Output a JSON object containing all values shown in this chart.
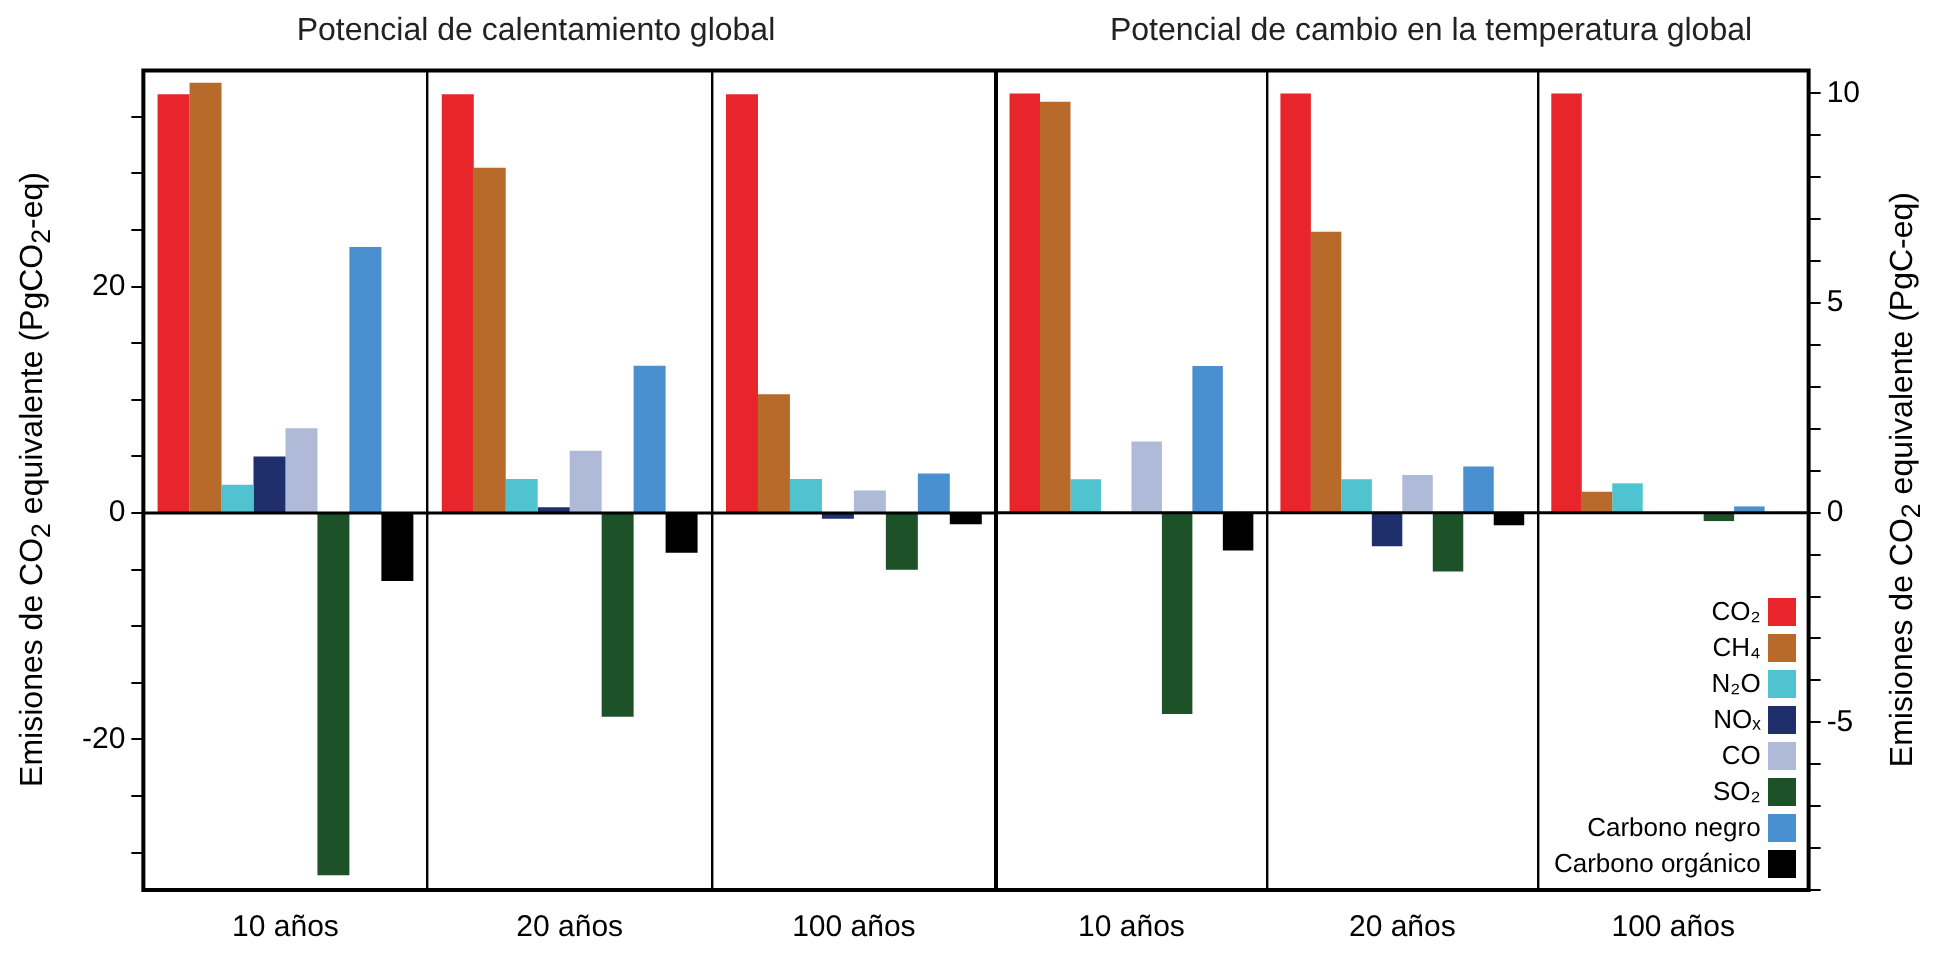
{
  "chart_data": [
    {
      "type": "bar",
      "title": "Potencial de calentamiento global",
      "ylabel": "Emisiones de CO$_{2}$ equivalente (PgCO$_{2}$-eq)",
      "categories": [
        "10 años",
        "20 años",
        "100 años"
      ],
      "ylim": [
        -33.3,
        39.1
      ],
      "yticks": [
        {
          "value": -30,
          "label": null
        },
        {
          "value": -25,
          "label": null
        },
        -20,
        {
          "value": -15,
          "label": null
        },
        {
          "value": -10,
          "label": null
        },
        {
          "value": -5,
          "label": null
        },
        0,
        {
          "value": 5,
          "label": null
        },
        {
          "value": 10,
          "label": null
        },
        {
          "value": 15,
          "label": null
        },
        20,
        {
          "value": 25,
          "label": null
        },
        {
          "value": 30,
          "label": null
        },
        {
          "value": 35,
          "label": null
        }
      ],
      "grid": "x",
      "ref_lines": [
        {
          "axis": "y",
          "value": 0
        }
      ],
      "series": [
        {
          "color": "#e8252a",
          "values": [
            37,
            37,
            37
          ]
        },
        {
          "color": "#b86a2a",
          "values": [
            38,
            30.5,
            10.5
          ]
        },
        {
          "color": "#4fc3d0",
          "values": [
            2.5,
            3,
            3
          ]
        },
        {
          "color": "#1f2f6b",
          "values": [
            5,
            0.5,
            -0.5
          ]
        },
        {
          "color": "#aebad8",
          "values": [
            7.5,
            5.5,
            2
          ]
        },
        {
          "color": "#1d5128",
          "values": [
            -32,
            -18,
            -5
          ]
        },
        {
          "color": "#4a90d0",
          "values": [
            23.5,
            13,
            3.5
          ]
        },
        {
          "color": "#000000",
          "values": [
            -6,
            -3.5,
            -1
          ]
        }
      ]
    },
    {
      "type": "bar",
      "title": "Potencial de cambio en la temperatura global",
      "y2label": "Emisiones de CO$_{2}$ equivalente (PgC-eq)",
      "categories": [
        "10 años",
        "20 años",
        "100 años"
      ],
      "y2lim": [
        -9,
        10.55
      ],
      "y2ticks": [
        {
          "value": -9,
          "label": null
        },
        {
          "value": -8,
          "label": null
        },
        {
          "value": -7,
          "label": null
        },
        {
          "value": -6,
          "label": null
        },
        -5,
        {
          "value": -4,
          "label": null
        },
        {
          "value": -3,
          "label": null
        },
        {
          "value": -2,
          "label": null
        },
        {
          "value": -1,
          "label": null
        },
        0,
        {
          "value": 1,
          "label": null
        },
        {
          "value": 2,
          "label": null
        },
        {
          "value": 3,
          "label": null
        },
        {
          "value": 4,
          "label": null
        },
        5,
        {
          "value": 6,
          "label": null
        },
        {
          "value": 7,
          "label": null
        },
        {
          "value": 8,
          "label": null
        },
        {
          "value": 9,
          "label": null
        },
        10
      ],
      "grid": "x",
      "legend": "bottom right",
      "ref_lines": [
        {
          "axis": "y2",
          "value": 0
        }
      ],
      "series": [
        {
          "name": "CO₂",
          "axis": "y2",
          "color": "#e8252a",
          "values": [
            10,
            10,
            10
          ]
        },
        {
          "name": "CH₄",
          "axis": "y2",
          "color": "#b86a2a",
          "values": [
            9.8,
            6.7,
            0.5
          ]
        },
        {
          "name": "N₂O",
          "axis": "y2",
          "color": "#4fc3d0",
          "values": [
            0.8,
            0.8,
            0.7
          ]
        },
        {
          "name": "NOₓ",
          "axis": "y2",
          "color": "#1f2f6b",
          "values": [
            null,
            -0.8,
            null
          ]
        },
        {
          "name": "CO",
          "axis": "y2",
          "color": "#aebad8",
          "values": [
            1.7,
            0.9,
            0.02
          ]
        },
        {
          "name": "SO₂",
          "axis": "y2",
          "color": "#1d5128",
          "values": [
            -4.8,
            -1.4,
            -0.2
          ]
        },
        {
          "name": "Carbono negro",
          "axis": "y2",
          "color": "#4a90d0",
          "values": [
            3.5,
            1.1,
            0.15
          ]
        },
        {
          "name": "Carbono orgánico",
          "axis": "y2",
          "color": "#000000",
          "values": [
            -0.9,
            -0.3,
            -0.03
          ]
        }
      ]
    }
  ]
}
